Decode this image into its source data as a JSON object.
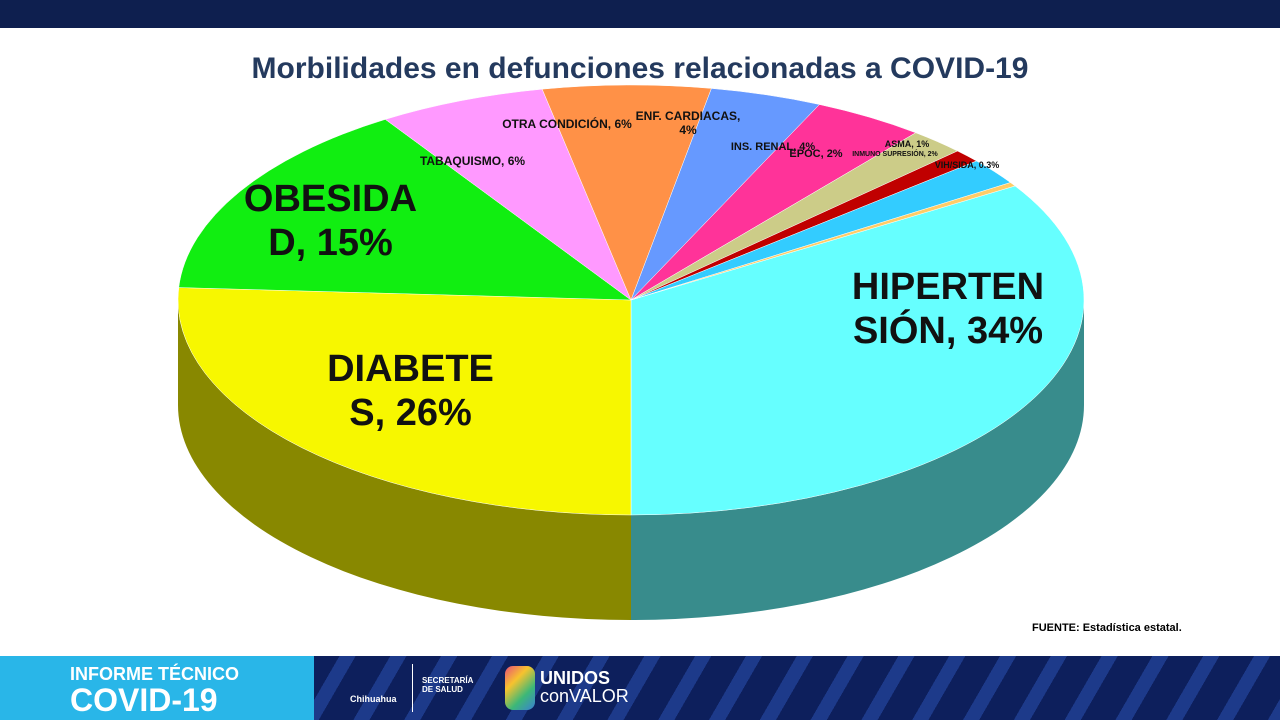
{
  "chart_data": {
    "type": "pie3d",
    "title": "Morbilidades en defunciones relacionadas a COVID-19",
    "values": [
      34,
      26,
      15,
      6,
      6,
      4,
      4,
      2,
      1,
      2,
      0.3
    ],
    "value_labels": [
      "HIPERTENSIÓN, 34%",
      "DIABETES, 26%",
      "OBESIDAD, 15%",
      "TABAQUISMO, 6%",
      "OTRA CONDICIÓN, 6%",
      "ENF. CARDIACAS, 4%",
      "INS. RENAL, 4%",
      "EPOC, 2%",
      "ASMA, 1%",
      "INMUNO SUPRESIÓN, 2%",
      "VIH/SIDA, 0.3%"
    ],
    "colors": [
      "#66ffff",
      "#f7f700",
      "#11ee11",
      "#ff99ff",
      "#ff9147",
      "#6699ff",
      "#ff3399",
      "#cccc88",
      "#c00000",
      "#33ccff",
      "#ffcc66"
    ]
  },
  "source": "FUENTE: Estadística estatal.",
  "footer": {
    "report": "INFORME TÉCNICO",
    "topic": "COVID-19",
    "state": "Chihuahua",
    "ministry": "SECRETARÍA DE SALUD",
    "slogan_1": "UNIDOS",
    "slogan_2": "conVALOR"
  }
}
